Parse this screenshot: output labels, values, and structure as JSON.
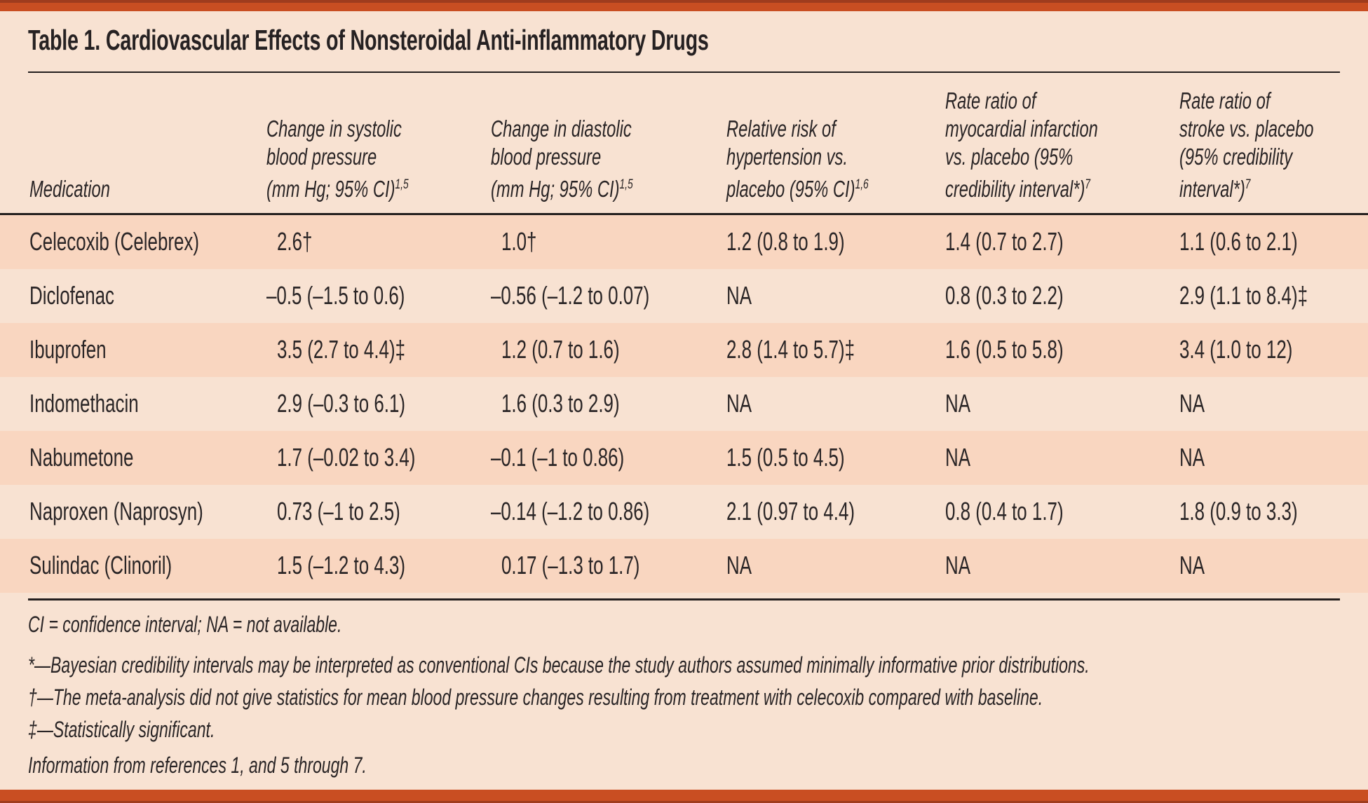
{
  "title": "Table 1. Cardiovascular Effects of Nonsteroidal Anti-inflammatory Drugs",
  "colors": {
    "accent_orange": "#c94e22",
    "page_background": "#f8e2d2",
    "row_stripe": "#f9d6c0",
    "text": "#2a2526"
  },
  "table": {
    "columns": [
      {
        "lines": [
          "Medication"
        ],
        "sup": ""
      },
      {
        "lines": [
          "Change in systolic",
          "blood pressure",
          "(mm Hg; 95% CI)"
        ],
        "sup": "1,5"
      },
      {
        "lines": [
          "Change in diastolic",
          "blood pressure",
          "(mm Hg; 95% CI)"
        ],
        "sup": "1,5"
      },
      {
        "lines": [
          "Relative risk of",
          "hypertension vs.",
          "placebo (95% CI)"
        ],
        "sup": "1,6"
      },
      {
        "lines": [
          "Rate ratio of",
          "myocardial infarction",
          "vs. placebo (95%",
          "credibility interval*)"
        ],
        "sup": "7"
      },
      {
        "lines": [
          "Rate ratio of",
          "stroke vs. placebo",
          "(95% credibility",
          "interval*)"
        ],
        "sup": "7"
      }
    ],
    "rows": [
      {
        "cells": [
          "Celecoxib (Celebrex)",
          "2.6†",
          "1.0†",
          "1.2 (0.8 to 1.9)",
          "1.4 (0.7 to 2.7)",
          "1.1 (0.6 to 2.1)"
        ]
      },
      {
        "cells": [
          "Diclofenac",
          "–0.5 (–1.5 to 0.6)",
          "–0.56 (–1.2 to 0.07)",
          "NA",
          "0.8 (0.3 to 2.2)",
          "2.9 (1.1 to 8.4)‡"
        ]
      },
      {
        "cells": [
          "Ibuprofen",
          "3.5 (2.7 to 4.4)‡",
          "1.2 (0.7 to 1.6)",
          "2.8 (1.4 to 5.7)‡",
          "1.6 (0.5 to 5.8)",
          "3.4 (1.0 to 12)"
        ]
      },
      {
        "cells": [
          "Indomethacin",
          "2.9 (–0.3 to 6.1)",
          "1.6 (0.3 to 2.9)",
          "NA",
          "NA",
          "NA"
        ]
      },
      {
        "cells": [
          "Nabumetone",
          "1.7 (–0.02 to 3.4)",
          "–0.1 (–1 to 0.86)",
          "1.5 (0.5 to 4.5)",
          "NA",
          "NA"
        ]
      },
      {
        "cells": [
          "Naproxen (Naprosyn)",
          "0.73 (–1 to 2.5)",
          "–0.14 (–1.2 to 0.86)",
          "2.1 (0.97 to 4.4)",
          "0.8 (0.4 to 1.7)",
          "1.8 (0.9 to 3.3)"
        ]
      },
      {
        "cells": [
          "Sulindac (Clinoril)",
          "1.5 (–1.2 to 4.3)",
          "0.17 (–1.3 to 1.7)",
          "NA",
          "NA",
          "NA"
        ]
      }
    ]
  },
  "footnotes": {
    "abbreviations": "CI = confidence interval; NA = not available.",
    "asterisk": "*—Bayesian credibility intervals may be interpreted as conventional CIs because the study authors assumed minimally informative prior distributions.",
    "dagger": "†—The meta-analysis did not give statistics for mean blood pressure changes resulting from treatment with celecoxib compared with baseline.",
    "double_dagger": "‡—Statistically significant.",
    "source": "Information from references 1, and 5 through 7."
  }
}
